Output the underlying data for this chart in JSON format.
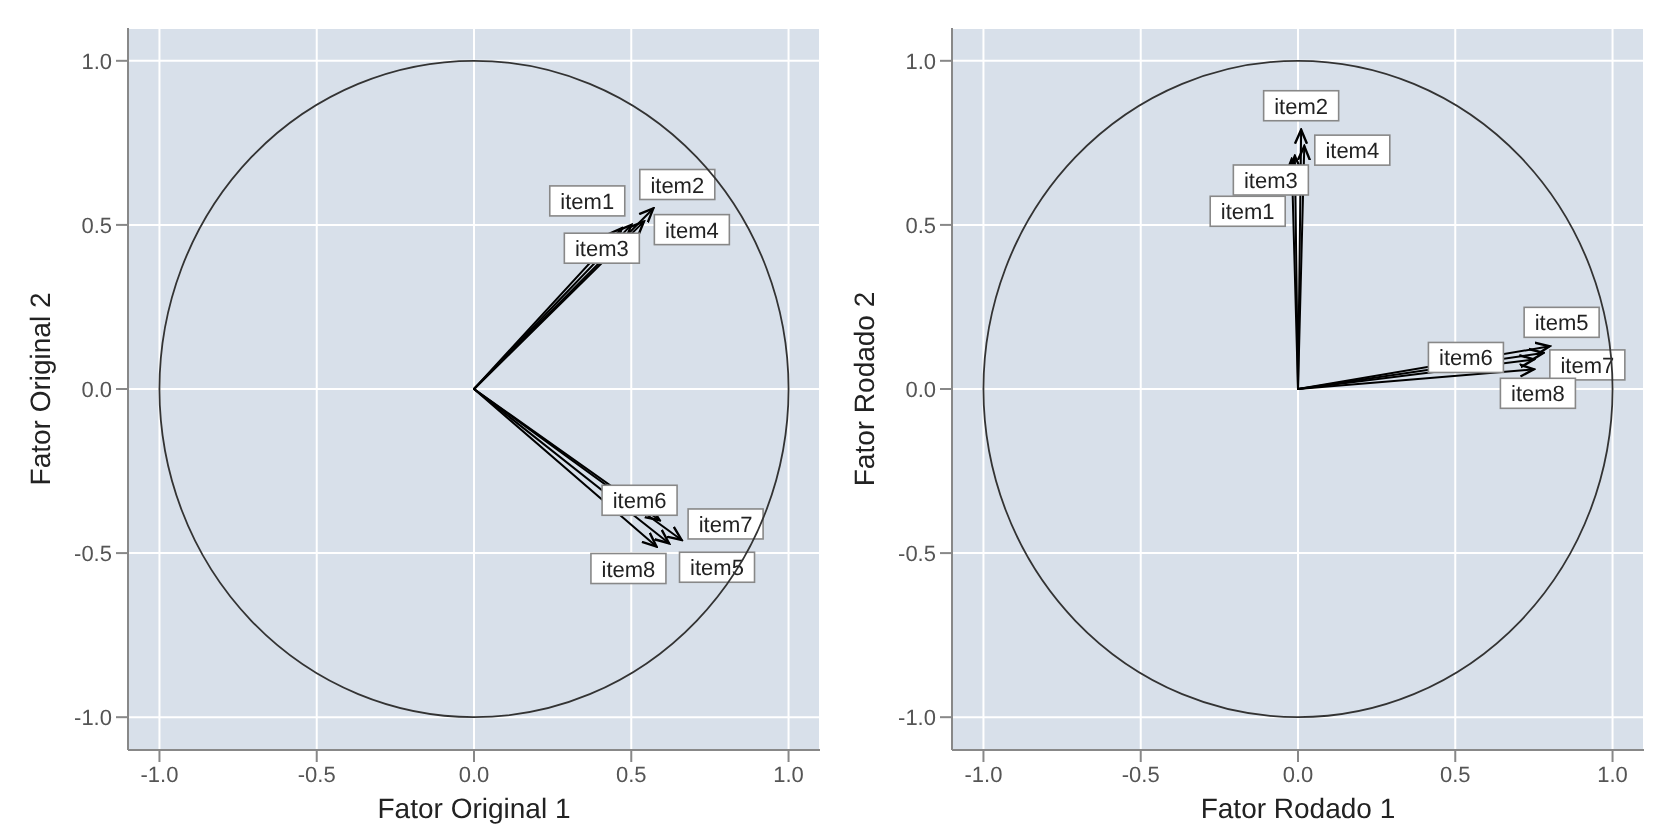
{
  "chart_data": [
    {
      "type": "line",
      "xlabel": "Fator Original 1",
      "ylabel": "Fator Original 2",
      "xlim": [
        -1.1,
        1.1
      ],
      "ylim": [
        -1.1,
        1.1
      ],
      "xticks": [
        {
          "value": -1,
          "label": "-1.0"
        },
        {
          "value": -0.5,
          "label": "-0.5"
        },
        {
          "value": 0,
          "label": "0.0"
        },
        {
          "value": 0.5,
          "label": "0.5"
        },
        {
          "value": 1,
          "label": "1.0"
        }
      ],
      "yticks": [
        {
          "value": -1,
          "label": "-1.0"
        },
        {
          "value": -0.5,
          "label": "-0.5"
        },
        {
          "value": 0,
          "label": "0.0"
        },
        {
          "value": 0.5,
          "label": "0.5"
        },
        {
          "value": 1,
          "label": "1.0"
        }
      ],
      "grid": true,
      "series": [
        {
          "name": "item1",
          "color": "#000000",
          "x": [
            0,
            0.5
          ],
          "values": [
            0,
            0.5
          ]
        },
        {
          "name": "item2",
          "color": "#000000",
          "x": [
            0,
            0.57
          ],
          "values": [
            0,
            0.55
          ]
        },
        {
          "name": "item3",
          "color": "#000000",
          "x": [
            0,
            0.47
          ],
          "values": [
            0,
            0.49
          ]
        },
        {
          "name": "item4",
          "color": "#000000",
          "x": [
            0,
            0.54
          ],
          "values": [
            0,
            0.51
          ]
        },
        {
          "name": "item5",
          "color": "#000000",
          "x": [
            0,
            0.62
          ],
          "values": [
            0,
            -0.47
          ]
        },
        {
          "name": "item6",
          "color": "#000000",
          "x": [
            0,
            0.59
          ],
          "values": [
            0,
            -0.4
          ]
        },
        {
          "name": "item7",
          "color": "#000000",
          "x": [
            0,
            0.66
          ],
          "values": [
            0,
            -0.46
          ]
        },
        {
          "name": "item8",
          "color": "#000000",
          "x": [
            0,
            0.58
          ],
          "values": [
            0,
            -0.48
          ]
        }
      ]
    },
    {
      "type": "line",
      "xlabel": "Fator Rodado 1",
      "ylabel": "Fator Rodado 2",
      "xlim": [
        -1.1,
        1.1
      ],
      "ylim": [
        -1.1,
        1.1
      ],
      "xticks": [
        {
          "value": -1,
          "label": "-1.0"
        },
        {
          "value": -0.5,
          "label": "-0.5"
        },
        {
          "value": 0,
          "label": "0.0"
        },
        {
          "value": 0.5,
          "label": "0.5"
        },
        {
          "value": 1,
          "label": "1.0"
        }
      ],
      "yticks": [
        {
          "value": -1,
          "label": "-1.0"
        },
        {
          "value": -0.5,
          "label": "-0.5"
        },
        {
          "value": 0,
          "label": "0.0"
        },
        {
          "value": 0.5,
          "label": "0.5"
        },
        {
          "value": 1,
          "label": "1.0"
        }
      ],
      "grid": true,
      "series": [
        {
          "name": "item1",
          "color": "#000000",
          "x": [
            0,
            -0.02
          ],
          "values": [
            0,
            0.7
          ]
        },
        {
          "name": "item2",
          "color": "#000000",
          "x": [
            0,
            0.01
          ],
          "values": [
            0,
            0.79
          ]
        },
        {
          "name": "item3",
          "color": "#000000",
          "x": [
            0,
            -0.01
          ],
          "values": [
            0,
            0.71
          ]
        },
        {
          "name": "item4",
          "color": "#000000",
          "x": [
            0,
            0.02
          ],
          "values": [
            0,
            0.74
          ]
        },
        {
          "name": "item5",
          "color": "#000000",
          "x": [
            0,
            0.8
          ],
          "values": [
            0,
            0.13
          ]
        },
        {
          "name": "item6",
          "color": "#000000",
          "x": [
            0,
            0.75
          ],
          "values": [
            0,
            0.09
          ]
        },
        {
          "name": "item7",
          "color": "#000000",
          "x": [
            0,
            0.78
          ],
          "values": [
            0,
            0.11
          ]
        },
        {
          "name": "item8",
          "color": "#000000",
          "x": [
            0,
            0.75
          ],
          "values": [
            0,
            0.06
          ]
        }
      ]
    }
  ]
}
